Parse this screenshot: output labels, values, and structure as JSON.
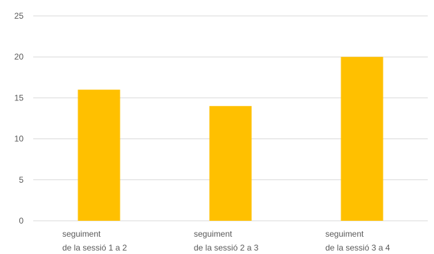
{
  "chart_data": {
    "type": "bar",
    "categories": [
      [
        "seguiment",
        "de la sessió 1 a 2"
      ],
      [
        "seguiment",
        "de la sessió 2 a 3"
      ],
      [
        "seguiment",
        "de la sessió 3 a 4"
      ]
    ],
    "values": [
      16,
      14,
      20
    ],
    "ylim": [
      0,
      25
    ],
    "yticks": [
      0,
      5,
      10,
      15,
      20,
      25
    ],
    "grid": true,
    "legend": "none",
    "bar_color": "#FFC000",
    "grid_color": "#D9D9D9",
    "text_color": "#595959"
  }
}
